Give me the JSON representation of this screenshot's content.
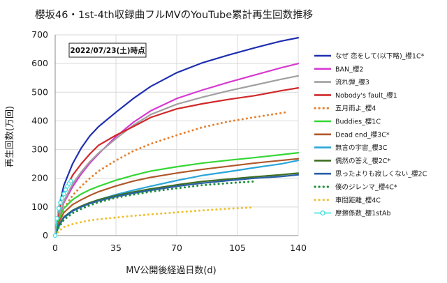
{
  "chart_data": {
    "type": "line",
    "title": "櫻坂46・1st-4th収録曲フルMVのYouTube累計再生回数推移",
    "annotation": "2022/07/23(土)時点",
    "xlabel": "MV公開後経過日数(d)",
    "ylabel": "再生回数(万回)",
    "xlim": [
      0,
      140
    ],
    "ylim": [
      0,
      700
    ],
    "xticks": [
      0,
      35,
      70,
      105,
      140
    ],
    "yticks": [
      0,
      100,
      200,
      300,
      400,
      500,
      600,
      700
    ],
    "grid": true,
    "legend_position": "right",
    "series": [
      {
        "name": "なぜ 恋をして(以下略)_櫻1C*",
        "color": "#1f2fb0",
        "style": "solid",
        "points": [
          [
            0,
            0
          ],
          [
            2,
            95
          ],
          [
            5,
            175
          ],
          [
            10,
            250
          ],
          [
            15,
            305
          ],
          [
            20,
            348
          ],
          [
            25,
            380
          ],
          [
            35,
            430
          ],
          [
            45,
            478
          ],
          [
            55,
            520
          ],
          [
            70,
            568
          ],
          [
            85,
            603
          ],
          [
            100,
            630
          ],
          [
            115,
            655
          ],
          [
            130,
            678
          ],
          [
            140,
            690
          ]
        ]
      },
      {
        "name": "BAN_櫻2",
        "color": "#d63ad0",
        "style": "solid",
        "points": [
          [
            0,
            0
          ],
          [
            2,
            60
          ],
          [
            5,
            115
          ],
          [
            10,
            170
          ],
          [
            15,
            215
          ],
          [
            20,
            253
          ],
          [
            25,
            285
          ],
          [
            35,
            345
          ],
          [
            45,
            395
          ],
          [
            55,
            435
          ],
          [
            70,
            478
          ],
          [
            85,
            508
          ],
          [
            100,
            535
          ],
          [
            115,
            560
          ],
          [
            130,
            585
          ],
          [
            140,
            600
          ]
        ]
      },
      {
        "name": "流れ弾_櫻3",
        "color": "#a0a0a0",
        "style": "solid",
        "points": [
          [
            0,
            0
          ],
          [
            2,
            65
          ],
          [
            5,
            120
          ],
          [
            10,
            180
          ],
          [
            15,
            222
          ],
          [
            20,
            258
          ],
          [
            25,
            288
          ],
          [
            35,
            338
          ],
          [
            45,
            385
          ],
          [
            55,
            422
          ],
          [
            70,
            458
          ],
          [
            85,
            483
          ],
          [
            100,
            505
          ],
          [
            115,
            525
          ],
          [
            130,
            545
          ],
          [
            140,
            557
          ]
        ]
      },
      {
        "name": "Nobody's fault_櫻1",
        "color": "#d0282a",
        "style": "solid",
        "points": [
          [
            0,
            0
          ],
          [
            2,
            85
          ],
          [
            5,
            150
          ],
          [
            10,
            210
          ],
          [
            15,
            250
          ],
          [
            20,
            285
          ],
          [
            25,
            315
          ],
          [
            35,
            350
          ],
          [
            45,
            380
          ],
          [
            55,
            412
          ],
          [
            70,
            442
          ],
          [
            85,
            460
          ],
          [
            100,
            475
          ],
          [
            115,
            488
          ],
          [
            130,
            505
          ],
          [
            140,
            515
          ]
        ]
      },
      {
        "name": "五月雨よ_櫻4",
        "color": "#e68130",
        "style": "dot",
        "points": [
          [
            0,
            0
          ],
          [
            2,
            50
          ],
          [
            5,
            95
          ],
          [
            10,
            140
          ],
          [
            15,
            172
          ],
          [
            20,
            200
          ],
          [
            25,
            225
          ],
          [
            35,
            262
          ],
          [
            45,
            295
          ],
          [
            55,
            320
          ],
          [
            70,
            350
          ],
          [
            85,
            378
          ],
          [
            100,
            398
          ],
          [
            115,
            413
          ],
          [
            133,
            430
          ]
        ]
      },
      {
        "name": "Buddies_櫻1C",
        "color": "#35d635",
        "style": "solid",
        "points": [
          [
            0,
            0
          ],
          [
            2,
            55
          ],
          [
            5,
            95
          ],
          [
            10,
            125
          ],
          [
            15,
            145
          ],
          [
            20,
            160
          ],
          [
            25,
            172
          ],
          [
            35,
            193
          ],
          [
            45,
            210
          ],
          [
            55,
            225
          ],
          [
            70,
            240
          ],
          [
            85,
            253
          ],
          [
            100,
            263
          ],
          [
            115,
            272
          ],
          [
            130,
            282
          ],
          [
            140,
            289
          ]
        ]
      },
      {
        "name": "Dead end_櫻3C*",
        "color": "#b0582a",
        "style": "solid",
        "points": [
          [
            0,
            0
          ],
          [
            2,
            45
          ],
          [
            5,
            80
          ],
          [
            10,
            108
          ],
          [
            15,
            125
          ],
          [
            20,
            140
          ],
          [
            25,
            153
          ],
          [
            35,
            173
          ],
          [
            45,
            190
          ],
          [
            55,
            203
          ],
          [
            70,
            218
          ],
          [
            85,
            231
          ],
          [
            100,
            242
          ],
          [
            115,
            253
          ],
          [
            130,
            262
          ],
          [
            140,
            268
          ]
        ]
      },
      {
        "name": "無言の宇宙_櫻3C",
        "color": "#2ba6d8",
        "style": "solid",
        "points": [
          [
            0,
            0
          ],
          [
            2,
            30
          ],
          [
            5,
            62
          ],
          [
            10,
            85
          ],
          [
            15,
            100
          ],
          [
            20,
            113
          ],
          [
            25,
            125
          ],
          [
            35,
            143
          ],
          [
            45,
            158
          ],
          [
            55,
            172
          ],
          [
            70,
            192
          ],
          [
            85,
            210
          ],
          [
            100,
            223
          ],
          [
            115,
            237
          ],
          [
            130,
            250
          ],
          [
            140,
            262
          ]
        ]
      },
      {
        "name": "偶然の答え_櫻2C*",
        "color": "#3e6e22",
        "style": "solid",
        "points": [
          [
            0,
            0
          ],
          [
            2,
            35
          ],
          [
            5,
            65
          ],
          [
            10,
            88
          ],
          [
            15,
            103
          ],
          [
            20,
            115
          ],
          [
            25,
            125
          ],
          [
            35,
            140
          ],
          [
            45,
            152
          ],
          [
            55,
            163
          ],
          [
            70,
            177
          ],
          [
            85,
            189
          ],
          [
            100,
            197
          ],
          [
            115,
            205
          ],
          [
            130,
            212
          ],
          [
            140,
            218
          ]
        ]
      },
      {
        "name": "思ったよりも寂しくない_櫻2C",
        "color": "#2a5fa8",
        "style": "solid",
        "points": [
          [
            0,
            0
          ],
          [
            2,
            35
          ],
          [
            5,
            63
          ],
          [
            10,
            86
          ],
          [
            15,
            100
          ],
          [
            20,
            112
          ],
          [
            25,
            121
          ],
          [
            35,
            136
          ],
          [
            45,
            148
          ],
          [
            55,
            158
          ],
          [
            70,
            172
          ],
          [
            85,
            183
          ],
          [
            100,
            192
          ],
          [
            115,
            200
          ],
          [
            130,
            206
          ],
          [
            140,
            212
          ]
        ]
      },
      {
        "name": "僕のジレンマ_櫻4C*",
        "color": "#1f8f3a",
        "style": "dot",
        "points": [
          [
            0,
            0
          ],
          [
            2,
            28
          ],
          [
            5,
            55
          ],
          [
            10,
            78
          ],
          [
            15,
            93
          ],
          [
            20,
            106
          ],
          [
            25,
            116
          ],
          [
            35,
            132
          ],
          [
            45,
            143
          ],
          [
            55,
            153
          ],
          [
            70,
            165
          ],
          [
            85,
            176
          ],
          [
            100,
            183
          ],
          [
            115,
            189
          ]
        ]
      },
      {
        "name": "車間距離_櫻4C",
        "color": "#f0c030",
        "style": "dot",
        "points": [
          [
            0,
            0
          ],
          [
            2,
            15
          ],
          [
            5,
            30
          ],
          [
            10,
            40
          ],
          [
            15,
            47
          ],
          [
            20,
            53
          ],
          [
            25,
            57
          ],
          [
            35,
            63
          ],
          [
            45,
            69
          ],
          [
            55,
            74
          ],
          [
            70,
            81
          ],
          [
            85,
            88
          ],
          [
            100,
            94
          ],
          [
            113,
            98
          ]
        ]
      },
      {
        "name": "摩擦係数_櫻1stAb",
        "color": "#40e0e0",
        "style": "markers",
        "points": [
          [
            0,
            0
          ],
          [
            1,
            60
          ],
          [
            2,
            95
          ],
          [
            3,
            115
          ],
          [
            4,
            130
          ],
          [
            5,
            145
          ],
          [
            6,
            160
          ],
          [
            7,
            172
          ],
          [
            8,
            182
          ],
          [
            9,
            190
          ]
        ]
      }
    ]
  }
}
